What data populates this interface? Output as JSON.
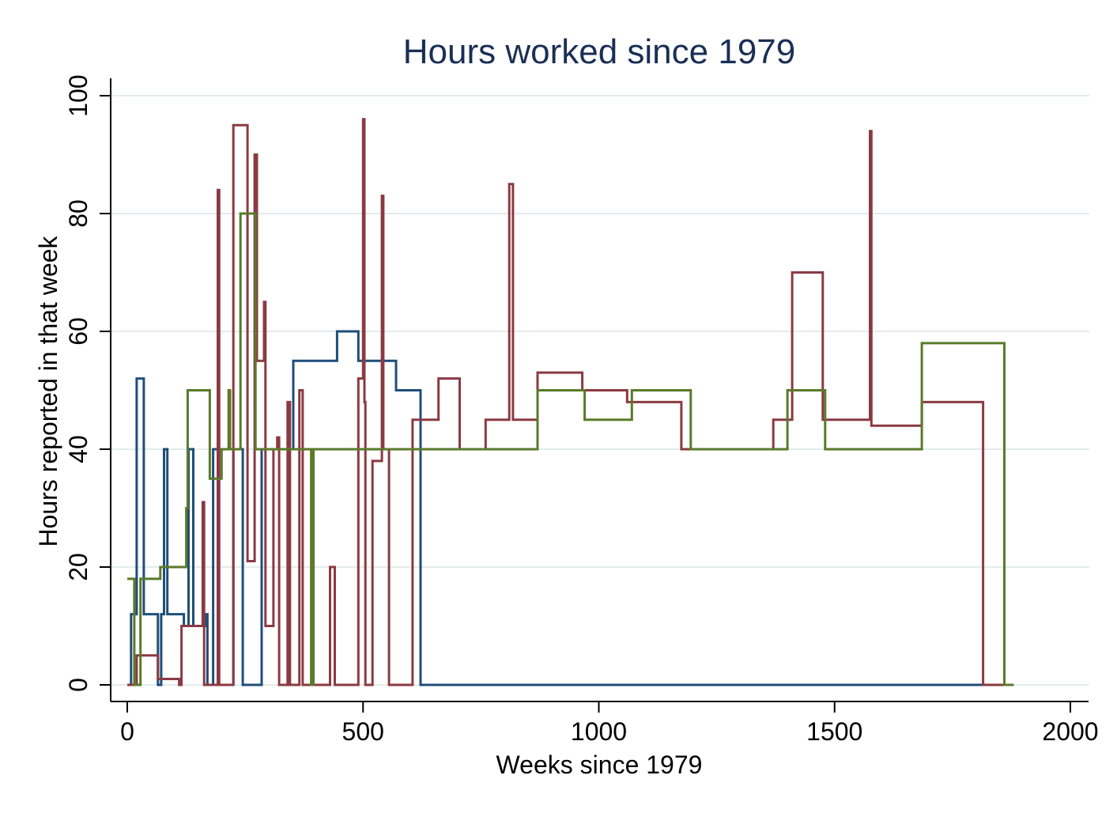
{
  "chart_data": {
    "type": "line",
    "title": "Hours worked since 1979",
    "xlabel": "Weeks since 1979",
    "ylabel": "Hours reported in that week",
    "xlim": [
      0,
      2000
    ],
    "ylim": [
      0,
      100
    ],
    "xticks": [
      0,
      500,
      1000,
      1500,
      2000
    ],
    "yticks": [
      0,
      20,
      40,
      60,
      80,
      100
    ],
    "grid": "horizontal",
    "step": true,
    "series": [
      {
        "color": "#1f4e79",
        "points": [
          [
            0,
            0
          ],
          [
            8,
            0
          ],
          [
            8,
            12
          ],
          [
            20,
            12
          ],
          [
            20,
            52
          ],
          [
            35,
            52
          ],
          [
            35,
            12
          ],
          [
            65,
            12
          ],
          [
            65,
            0
          ],
          [
            72,
            0
          ],
          [
            72,
            12
          ],
          [
            78,
            12
          ],
          [
            78,
            40
          ],
          [
            85,
            40
          ],
          [
            85,
            12
          ],
          [
            120,
            12
          ],
          [
            120,
            10
          ],
          [
            130,
            10
          ],
          [
            130,
            40
          ],
          [
            140,
            40
          ],
          [
            140,
            10
          ],
          [
            165,
            10
          ],
          [
            165,
            12
          ],
          [
            170,
            12
          ],
          [
            170,
            0
          ],
          [
            182,
            0
          ],
          [
            182,
            40
          ],
          [
            192,
            40
          ],
          [
            192,
            0
          ],
          [
            225,
            0
          ],
          [
            225,
            40
          ],
          [
            245,
            40
          ],
          [
            245,
            0
          ],
          [
            285,
            0
          ],
          [
            285,
            40
          ],
          [
            352,
            40
          ],
          [
            352,
            55
          ],
          [
            445,
            55
          ],
          [
            445,
            60
          ],
          [
            490,
            60
          ],
          [
            490,
            55
          ],
          [
            570,
            55
          ],
          [
            570,
            50
          ],
          [
            622,
            50
          ],
          [
            622,
            0
          ],
          [
            1820,
            0
          ]
        ]
      },
      {
        "color": "#8b3a42",
        "points": [
          [
            0,
            0
          ],
          [
            20,
            0
          ],
          [
            20,
            5
          ],
          [
            65,
            5
          ],
          [
            65,
            1
          ],
          [
            110,
            1
          ],
          [
            110,
            0
          ],
          [
            115,
            0
          ],
          [
            115,
            10
          ],
          [
            160,
            10
          ],
          [
            160,
            31
          ],
          [
            163,
            31
          ],
          [
            163,
            0
          ],
          [
            192,
            0
          ],
          [
            192,
            84
          ],
          [
            195,
            84
          ],
          [
            195,
            0
          ],
          [
            225,
            0
          ],
          [
            225,
            95
          ],
          [
            255,
            95
          ],
          [
            255,
            21
          ],
          [
            270,
            21
          ],
          [
            270,
            90
          ],
          [
            275,
            90
          ],
          [
            275,
            55
          ],
          [
            290,
            55
          ],
          [
            290,
            65
          ],
          [
            293,
            65
          ],
          [
            293,
            10
          ],
          [
            310,
            10
          ],
          [
            310,
            40
          ],
          [
            318,
            40
          ],
          [
            318,
            42
          ],
          [
            322,
            42
          ],
          [
            322,
            0
          ],
          [
            340,
            0
          ],
          [
            340,
            48
          ],
          [
            345,
            48
          ],
          [
            345,
            0
          ],
          [
            365,
            0
          ],
          [
            365,
            50
          ],
          [
            372,
            50
          ],
          [
            372,
            0
          ],
          [
            430,
            0
          ],
          [
            430,
            20
          ],
          [
            440,
            20
          ],
          [
            440,
            0
          ],
          [
            490,
            0
          ],
          [
            490,
            52
          ],
          [
            500,
            52
          ],
          [
            500,
            96
          ],
          [
            503,
            96
          ],
          [
            503,
            48
          ],
          [
            505,
            48
          ],
          [
            505,
            0
          ],
          [
            520,
            0
          ],
          [
            520,
            38
          ],
          [
            540,
            38
          ],
          [
            540,
            83
          ],
          [
            543,
            83
          ],
          [
            543,
            40
          ],
          [
            555,
            40
          ],
          [
            555,
            0
          ],
          [
            605,
            0
          ],
          [
            605,
            45
          ],
          [
            660,
            45
          ],
          [
            660,
            52
          ],
          [
            705,
            52
          ],
          [
            705,
            40
          ],
          [
            760,
            40
          ],
          [
            760,
            45
          ],
          [
            810,
            45
          ],
          [
            810,
            85
          ],
          [
            818,
            85
          ],
          [
            818,
            45
          ],
          [
            870,
            45
          ],
          [
            870,
            53
          ],
          [
            965,
            53
          ],
          [
            965,
            50
          ],
          [
            1060,
            50
          ],
          [
            1060,
            48
          ],
          [
            1175,
            48
          ],
          [
            1175,
            40
          ],
          [
            1370,
            40
          ],
          [
            1370,
            45
          ],
          [
            1410,
            45
          ],
          [
            1410,
            70
          ],
          [
            1475,
            70
          ],
          [
            1475,
            45
          ],
          [
            1575,
            45
          ],
          [
            1575,
            94
          ],
          [
            1578,
            94
          ],
          [
            1578,
            44
          ],
          [
            1685,
            44
          ],
          [
            1685,
            48
          ],
          [
            1815,
            48
          ],
          [
            1815,
            0
          ],
          [
            1860,
            0
          ]
        ]
      },
      {
        "color": "#5a7a2a",
        "points": [
          [
            0,
            18
          ],
          [
            15,
            18
          ],
          [
            15,
            0
          ],
          [
            28,
            0
          ],
          [
            28,
            18
          ],
          [
            70,
            18
          ],
          [
            70,
            20
          ],
          [
            125,
            20
          ],
          [
            125,
            30
          ],
          [
            128,
            30
          ],
          [
            128,
            50
          ],
          [
            175,
            50
          ],
          [
            175,
            35
          ],
          [
            200,
            35
          ],
          [
            200,
            40
          ],
          [
            215,
            40
          ],
          [
            215,
            50
          ],
          [
            218,
            50
          ],
          [
            218,
            40
          ],
          [
            240,
            40
          ],
          [
            240,
            80
          ],
          [
            272,
            80
          ],
          [
            272,
            40
          ],
          [
            390,
            40
          ],
          [
            390,
            0
          ],
          [
            395,
            0
          ],
          [
            395,
            40
          ],
          [
            870,
            40
          ],
          [
            870,
            50
          ],
          [
            970,
            50
          ],
          [
            970,
            45
          ],
          [
            1070,
            45
          ],
          [
            1070,
            50
          ],
          [
            1195,
            50
          ],
          [
            1195,
            40
          ],
          [
            1400,
            40
          ],
          [
            1400,
            50
          ],
          [
            1480,
            50
          ],
          [
            1480,
            40
          ],
          [
            1685,
            40
          ],
          [
            1685,
            58
          ],
          [
            1860,
            58
          ],
          [
            1860,
            0
          ],
          [
            1880,
            0
          ]
        ]
      }
    ]
  }
}
